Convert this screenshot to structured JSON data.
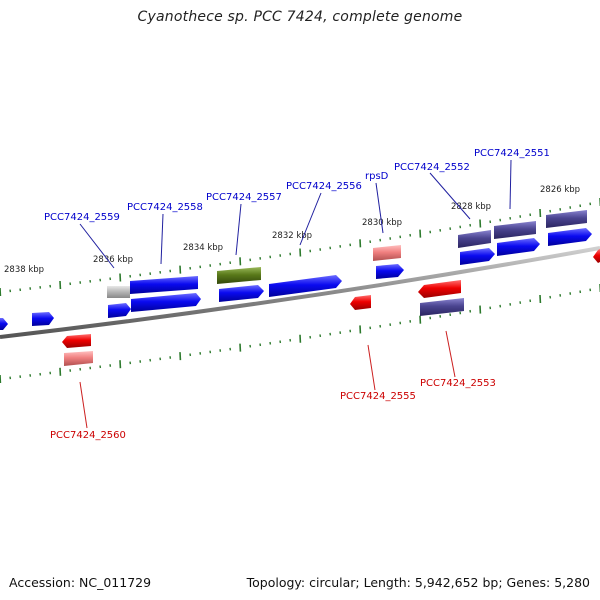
{
  "title": "Cyanothece sp. PCC 7424, complete genome",
  "footer": {
    "accession": "Accession: NC_011729",
    "summary": "Topology: circular; Length: 5,942,652 bp; Genes: 5,280"
  },
  "colors": {
    "cds_forward": "#0a0af0",
    "cds_reverse": "#ee0000",
    "rna": "#f08080",
    "other_forward": "#4a4490",
    "grey_feature": "#b8b8b8",
    "green_feature": "#5a7a1a",
    "backbone": "#8a8a8a",
    "tick": "#2d7a2d"
  },
  "scale_ticks": [
    {
      "label": "2838 kbp"
    },
    {
      "label": "2836 kbp"
    },
    {
      "label": "2834 kbp"
    },
    {
      "label": "2832 kbp"
    },
    {
      "label": "2830 kbp"
    },
    {
      "label": "2828 kbp"
    },
    {
      "label": "2826 kbp"
    }
  ],
  "gene_labels": [
    {
      "text": "PCC7424_2559",
      "strand": "+"
    },
    {
      "text": "PCC7424_2558",
      "strand": "+"
    },
    {
      "text": "PCC7424_2557",
      "strand": "+"
    },
    {
      "text": "PCC7424_2556",
      "strand": "+"
    },
    {
      "text": "rpsD",
      "strand": "+"
    },
    {
      "text": "PCC7424_2552",
      "strand": "+"
    },
    {
      "text": "PCC7424_2551",
      "strand": "+"
    },
    {
      "text": "PCC7424_2560",
      "strand": "-"
    },
    {
      "text": "PCC7424_2555",
      "strand": "-"
    },
    {
      "text": "PCC7424_2553",
      "strand": "-"
    }
  ]
}
